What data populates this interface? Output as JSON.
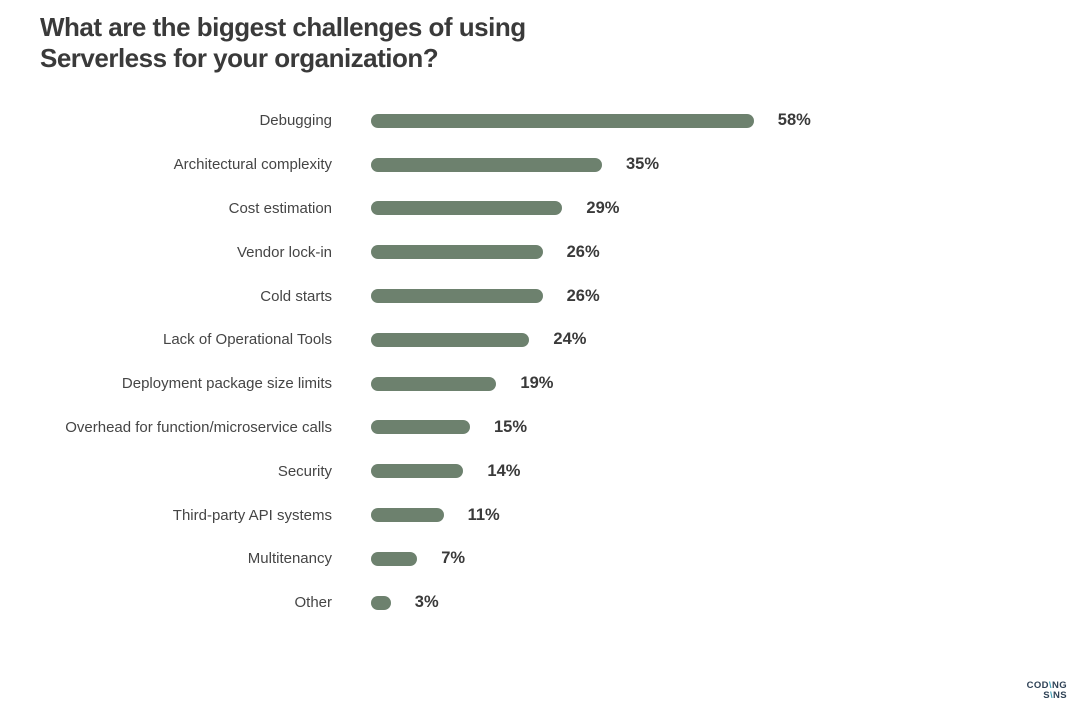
{
  "chart_data": {
    "type": "bar",
    "orientation": "horizontal",
    "title": "What are the biggest challenges of using Serverless for your organization?",
    "categories": [
      "Debugging",
      "Architectural complexity",
      "Cost estimation",
      "Vendor lock-in",
      "Cold starts",
      "Lack of Operational Tools",
      "Deployment package size limits",
      "Overhead for function/microservice calls",
      "Security",
      "Third-party API systems",
      "Multitenancy",
      "Other"
    ],
    "values": [
      58,
      35,
      29,
      26,
      26,
      24,
      19,
      15,
      14,
      11,
      7,
      3
    ],
    "value_suffix": "%",
    "xlim": [
      0,
      60
    ],
    "grid": false,
    "legend": false,
    "bar_color": "#6d816e",
    "title_color": "#3a3a3a",
    "category_label_color": "#454545",
    "value_label_color": "#3a3a3a"
  },
  "branding": {
    "logo_text": "CODING SANS",
    "logo_line1_pre": "COD",
    "logo_slash1": "\\",
    "logo_line1_post": "NG",
    "logo_line2_pre": "S",
    "logo_slash2": "\\",
    "logo_line2_post": "NS",
    "navy": "#2f4256",
    "teal": "#3f9fb6"
  }
}
